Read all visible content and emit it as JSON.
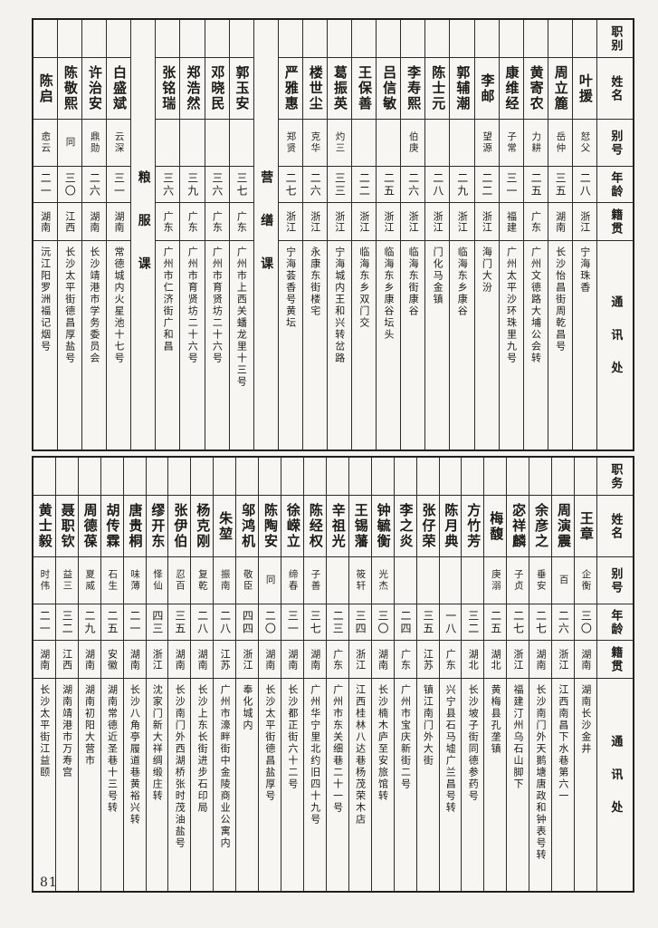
{
  "page_number": "81",
  "colors": {
    "paper": "#f4f2ee",
    "ink": "#1d1b18"
  },
  "tables": {
    "top": {
      "headers": {
        "duty": "职别",
        "name": "姓名",
        "alias": "别号",
        "age": "年龄",
        "origin": "籍贯",
        "address": "通讯处"
      },
      "columns": [
        {
          "type": "person",
          "duty": "",
          "name": "叶援",
          "alias": "恏父",
          "age": "二八",
          "origin": "浙江",
          "address": "宁海珠香"
        },
        {
          "type": "person",
          "duty": "",
          "name": "周立簏",
          "alias": "岳仲",
          "age": "三五",
          "origin": "湖南",
          "address": "长沙怡昌街周乾昌号"
        },
        {
          "type": "person",
          "duty": "",
          "name": "黄寄农",
          "alias": "力耕",
          "age": "二五",
          "origin": "广东",
          "address": "广州文德路大埔公会转"
        },
        {
          "type": "person",
          "duty": "",
          "name": "康维经",
          "alias": "子常",
          "age": "三一",
          "origin": "福建",
          "address": "广州太平沙环珠里九号"
        },
        {
          "type": "person",
          "duty": "",
          "name": "李邮",
          "alias": "望源",
          "age": "二二",
          "origin": "浙江",
          "address": "海门大汾"
        },
        {
          "type": "person",
          "duty": "",
          "name": "郭辅潮",
          "alias": "",
          "age": "二九",
          "origin": "浙江",
          "address": "临海东乡康谷"
        },
        {
          "type": "person",
          "duty": "",
          "name": "陈士元",
          "alias": "",
          "age": "二八",
          "origin": "浙江",
          "address": "门化马金镇"
        },
        {
          "type": "person",
          "duty": "",
          "name": "李寿熙",
          "alias": "伯庚",
          "age": "二六",
          "origin": "浙江",
          "address": "临海东街康谷"
        },
        {
          "type": "person",
          "duty": "",
          "name": "吕信敏",
          "alias": "",
          "age": "二五",
          "origin": "浙江",
          "address": "临海东乡康谷坛头"
        },
        {
          "type": "person",
          "duty": "",
          "name": "王保善",
          "alias": "",
          "age": "二二",
          "origin": "浙江",
          "address": "临海东乡双门交"
        },
        {
          "type": "person",
          "duty": "",
          "name": "葛振英",
          "alias": "灼三",
          "age": "三三",
          "origin": "浙江",
          "address": "宁海城内王和兴转岔路"
        },
        {
          "type": "person",
          "duty": "",
          "name": "楼世尘",
          "alias": "克华",
          "age": "二六",
          "origin": "浙江",
          "address": "永康东街楼宅"
        },
        {
          "type": "person",
          "duty": "",
          "name": "严雅惠",
          "alias": "郑贤",
          "age": "二七",
          "origin": "浙江",
          "address": "宁海荟香号黄坛"
        },
        {
          "type": "section",
          "label": "营缮课"
        },
        {
          "type": "person",
          "duty": "",
          "name": "郭玉安",
          "alias": "",
          "age": "三七",
          "origin": "广东",
          "address": "广州市上西关蟠龙里十三号"
        },
        {
          "type": "person",
          "duty": "",
          "name": "邓晓民",
          "alias": "",
          "age": "三六",
          "origin": "广东",
          "address": "广州市育贤坊二十六号"
        },
        {
          "type": "person",
          "duty": "",
          "name": "郑浩然",
          "alias": "",
          "age": "三九",
          "origin": "广东",
          "address": "广州市育贤坊二十六号"
        },
        {
          "type": "person",
          "duty": "",
          "name": "张铭瑞",
          "alias": "",
          "age": "三六",
          "origin": "广东",
          "address": "广州市仁济街广和昌"
        },
        {
          "type": "section",
          "label": "粮服课"
        },
        {
          "type": "person",
          "duty": "",
          "name": "白盛斌",
          "alias": "云深",
          "age": "三一",
          "origin": "湖南",
          "address": "常德城内火星池十七号"
        },
        {
          "type": "person",
          "duty": "",
          "name": "许治安",
          "alias": "鼎勋",
          "age": "二六",
          "origin": "湖南",
          "address": "长沙靖港市学务委员会"
        },
        {
          "type": "person",
          "duty": "",
          "name": "陈敬熙",
          "alias": "同",
          "age": "三〇",
          "origin": "江西",
          "address": "长沙太平街德昌厚盐号"
        },
        {
          "type": "person",
          "duty": "",
          "name": "陈启",
          "alias": "悆云",
          "age": "二一",
          "origin": "湖南",
          "address": "沅江阳罗洲福记烟号"
        }
      ]
    },
    "bottom": {
      "headers": {
        "duty": "职务",
        "name": "姓名",
        "alias": "别号",
        "age": "年龄",
        "origin": "籍贯",
        "address": "通讯处"
      },
      "columns": [
        {
          "type": "person",
          "duty": "",
          "name": "王章",
          "alias": "企衡",
          "age": "三〇",
          "origin": "湖南",
          "address": "湖南长沙金井"
        },
        {
          "type": "person",
          "duty": "",
          "name": "周演震",
          "alias": "百",
          "age": "二六",
          "origin": "浙江",
          "address": "江西南昌下水巷第六一"
        },
        {
          "type": "person",
          "duty": "",
          "name": "余彦之",
          "alias": "垂安",
          "age": "二七",
          "origin": "湖南",
          "address": "长沙南门外天鹅塘唐政和钟表号转"
        },
        {
          "type": "person",
          "duty": "",
          "name": "宓祥麟",
          "alias": "子贞",
          "age": "二七",
          "origin": "浙江",
          "address": "福建汀州乌石山脚下"
        },
        {
          "type": "person",
          "duty": "",
          "name": "梅馥",
          "alias": "庚溺",
          "age": "二五",
          "origin": "湖北",
          "address": "黄梅县孔垄镇"
        },
        {
          "type": "person",
          "duty": "",
          "name": "方竹芳",
          "alias": "",
          "age": "三二",
          "origin": "湖北",
          "address": "长沙坡子街同德参药号"
        },
        {
          "type": "person",
          "duty": "",
          "name": "陈月典",
          "alias": "",
          "age": "一八",
          "origin": "广东",
          "address": "兴宁县石马墟广兰昌号转"
        },
        {
          "type": "person",
          "duty": "",
          "name": "张仔荣",
          "alias": "",
          "age": "三五",
          "origin": "江苏",
          "address": "镇江南门外大街"
        },
        {
          "type": "person",
          "duty": "",
          "name": "李之炎",
          "alias": "",
          "age": "二四",
          "origin": "广东",
          "address": "广州市宝庆新街二号"
        },
        {
          "type": "person",
          "duty": "",
          "name": "钟毓衡",
          "alias": "光杰",
          "age": "三〇",
          "origin": "湖南",
          "address": "长沙楠木庐至安旅馆转"
        },
        {
          "type": "person",
          "duty": "",
          "name": "王锡藩",
          "alias": "筱轩",
          "age": "三四",
          "origin": "浙江",
          "address": "江西桂林八达巷杨茂荣木店"
        },
        {
          "type": "person",
          "duty": "",
          "name": "辛祖光",
          "alias": "",
          "age": "二三",
          "origin": "广东",
          "address": "广州市东关细巷二十一号"
        },
        {
          "type": "person",
          "duty": "",
          "name": "陈经权",
          "alias": "子善",
          "age": "三七",
          "origin": "湖南",
          "address": "广州华宁里北约旧四十九号"
        },
        {
          "type": "person",
          "duty": "",
          "name": "徐嵘立",
          "alias": "缔春",
          "age": "三一",
          "origin": "湖南",
          "address": "长沙都正街六十二号"
        },
        {
          "type": "person",
          "duty": "",
          "name": "陈陶安",
          "alias": "同",
          "age": "二〇",
          "origin": "湖南",
          "address": "长沙太平街德昌盐厚号"
        },
        {
          "type": "person",
          "duty": "",
          "name": "邬鸿机",
          "alias": "敬臣",
          "age": "四四",
          "origin": "浙江",
          "address": "奉化城内"
        },
        {
          "type": "person",
          "duty": "",
          "name": "朱堃",
          "alias": "振南",
          "age": "二八",
          "origin": "江苏",
          "address": "广州市濠畔街中金陵商业公寓内"
        },
        {
          "type": "person",
          "duty": "",
          "name": "杨克刚",
          "alias": "复乾",
          "age": "二八",
          "origin": "湖南",
          "address": "长沙上东长街进步石印局"
        },
        {
          "type": "person",
          "duty": "",
          "name": "张伊伯",
          "alias": "忍百",
          "age": "三五",
          "origin": "湖南",
          "address": "长沙南门外西湖桥张时茂油盐号"
        },
        {
          "type": "person",
          "duty": "",
          "name": "缪开东",
          "alias": "怿仙",
          "age": "四三",
          "origin": "浙江",
          "address": "沈家门新大祥绸缎庄转"
        },
        {
          "type": "person",
          "duty": "",
          "name": "唐贵桐",
          "alias": "味薄",
          "age": "二一",
          "origin": "湖南",
          "address": "长沙八角亭履道巷黄裕兴转"
        },
        {
          "type": "person",
          "duty": "",
          "name": "胡传霖",
          "alias": "石生",
          "age": "二五",
          "origin": "安徽",
          "address": "湖南常德近圣巷十三号转"
        },
        {
          "type": "person",
          "duty": "",
          "name": "周德葆",
          "alias": "夏威",
          "age": "二九",
          "origin": "湖南",
          "address": "湖南初阳大营市"
        },
        {
          "type": "person",
          "duty": "",
          "name": "聂职钦",
          "alias": "益三",
          "age": "三二",
          "origin": "江西",
          "address": "湖南靖港市万寿宫"
        },
        {
          "type": "person",
          "duty": "",
          "name": "黄士毅",
          "alias": "时伟",
          "age": "二一",
          "origin": "湖南",
          "address": "长沙太平街江益颐"
        }
      ]
    }
  }
}
